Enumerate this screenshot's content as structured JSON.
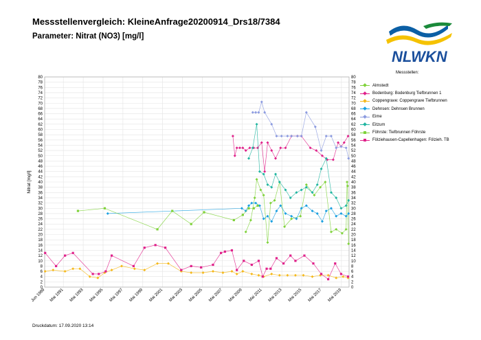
{
  "header": {
    "title": "Messstellenvergleich: KleineAnfrage20200914_Drs18/7384",
    "subtitle": "Parameter: Nitrat (NO3) [mg/l]"
  },
  "logo": {
    "text": "NLWKN",
    "colors": {
      "blue": "#0b5fa5",
      "yellow": "#f5c200",
      "green": "#1a8a3a"
    }
  },
  "footer": {
    "print_date": "Druckdatum: 17.09.2020 13:14"
  },
  "chart_data": {
    "type": "line",
    "xlabel": "",
    "ylabel": "Nitrat  [mg/l]",
    "ylim": [
      0,
      80
    ],
    "y_ticks": [
      0,
      2,
      4,
      6,
      8,
      10,
      12,
      14,
      16,
      18,
      20,
      22,
      24,
      26,
      28,
      30,
      32,
      34,
      36,
      38,
      40,
      42,
      44,
      46,
      48,
      50,
      52,
      54,
      56,
      58,
      60,
      62,
      64,
      66,
      68,
      70,
      72,
      74,
      76,
      78,
      80
    ],
    "xlim": [
      1989.45,
      2020.1
    ],
    "x_ticks": [
      {
        "t": 1989.45,
        "label": "Jun 1989"
      },
      {
        "t": 1991.33,
        "label": "Mai 1991"
      },
      {
        "t": 1993.33,
        "label": "Mai 1993"
      },
      {
        "t": 1995.33,
        "label": "Mai 1995"
      },
      {
        "t": 1997.33,
        "label": "Mai 1997"
      },
      {
        "t": 1999.33,
        "label": "Mai 1999"
      },
      {
        "t": 2001.33,
        "label": "Mai 2001"
      },
      {
        "t": 2003.33,
        "label": "Mai 2003"
      },
      {
        "t": 2005.33,
        "label": "Mai 2005"
      },
      {
        "t": 2007.33,
        "label": "Mai 2007"
      },
      {
        "t": 2009.33,
        "label": "Mai 2009"
      },
      {
        "t": 2011.33,
        "label": "Mai 2011"
      },
      {
        "t": 2013.33,
        "label": "Mai 2013"
      },
      {
        "t": 2015.33,
        "label": "Mai 2015"
      },
      {
        "t": 2017.33,
        "label": "Mai 2017"
      },
      {
        "t": 2019.33,
        "label": "Mai 2019"
      }
    ],
    "grid": true,
    "legend_title": "Messstellen:",
    "legend_position": "right",
    "series": [
      {
        "name": "Almstedt",
        "color": "#7fd23a",
        "marker": "diamond",
        "points": [
          [
            2009.7,
            21
          ],
          [
            2010.2,
            25.5
          ],
          [
            2010.6,
            34
          ],
          [
            2010.8,
            41
          ],
          [
            2011.2,
            37
          ],
          [
            2011.5,
            35
          ],
          [
            2011.9,
            17
          ],
          [
            2012.2,
            32
          ],
          [
            2012.6,
            33
          ],
          [
            2013.1,
            40
          ],
          [
            2013.6,
            23
          ],
          [
            2014.3,
            26
          ],
          [
            2015.2,
            27
          ],
          [
            2015.8,
            39
          ],
          [
            2016.6,
            35
          ],
          [
            2017.2,
            38
          ],
          [
            2017.7,
            40
          ],
          [
            2018.3,
            21
          ],
          [
            2018.8,
            22
          ],
          [
            2019.4,
            20.5
          ],
          [
            2019.8,
            22
          ],
          [
            2020.05,
            16.5
          ],
          [
            2019.9,
            40
          ],
          [
            2019.95,
            38.5
          ]
        ]
      },
      {
        "name": "Bodenburg: Bodenburg Tiefbrunnen 1",
        "color": "#e0218a",
        "marker": "diamond",
        "points": [
          [
            2008.4,
            57.5
          ],
          [
            2008.6,
            50
          ],
          [
            2008.8,
            53
          ],
          [
            2009.1,
            53
          ],
          [
            2009.4,
            53
          ],
          [
            2009.7,
            52
          ],
          [
            2010.1,
            53
          ],
          [
            2010.5,
            53
          ],
          [
            2010.9,
            53
          ],
          [
            2011.3,
            55
          ],
          [
            2011.6,
            44
          ],
          [
            2011.9,
            55
          ],
          [
            2012.3,
            52
          ],
          [
            2012.7,
            49
          ],
          [
            2013.2,
            53
          ],
          [
            2013.7,
            53
          ],
          [
            2014.3,
            57.5
          ],
          [
            2014.9,
            57.5
          ],
          [
            2015.3,
            57.5
          ],
          [
            2016.2,
            53
          ],
          [
            2016.8,
            52
          ],
          [
            2017.4,
            50
          ],
          [
            2017.9,
            48.5
          ],
          [
            2018.5,
            48.5
          ],
          [
            2019.0,
            55
          ],
          [
            2019.3,
            53.5
          ],
          [
            2019.6,
            55
          ],
          [
            2020.0,
            57.5
          ]
        ]
      },
      {
        "name": "Coppengrave: Coppengrave Tiefbrunnen",
        "color": "#f5b81a",
        "marker": "diamond",
        "points": [
          [
            1989.5,
            6
          ],
          [
            1990.3,
            6.5
          ],
          [
            1991.5,
            6
          ],
          [
            1992.3,
            7
          ],
          [
            1993.0,
            7
          ],
          [
            1994.0,
            4
          ],
          [
            1994.8,
            3.5
          ],
          [
            1995.5,
            5.5
          ],
          [
            1996.2,
            6.5
          ],
          [
            1997.2,
            8
          ],
          [
            1998.5,
            7
          ],
          [
            1999.5,
            6.5
          ],
          [
            2000.8,
            9
          ],
          [
            2001.9,
            9
          ],
          [
            2003.2,
            6
          ],
          [
            2004.2,
            5.5
          ],
          [
            2005.4,
            5.5
          ],
          [
            2006.4,
            6
          ],
          [
            2007.4,
            5.5
          ],
          [
            2008.3,
            6
          ],
          [
            2008.8,
            5
          ],
          [
            2009.4,
            6
          ],
          [
            2010.3,
            5
          ],
          [
            2011.0,
            4.5
          ],
          [
            2011.5,
            4
          ],
          [
            2012.3,
            5
          ],
          [
            2013.1,
            4.5
          ],
          [
            2013.9,
            4.5
          ],
          [
            2014.7,
            4.5
          ],
          [
            2015.5,
            4.5
          ],
          [
            2016.4,
            4
          ],
          [
            2017.2,
            4.5
          ],
          [
            2018.0,
            4.5
          ],
          [
            2018.8,
            3.5
          ],
          [
            2019.5,
            4
          ],
          [
            2020.0,
            3.5
          ]
        ]
      },
      {
        "name": "Dehnsen: Dehnsen Brunnen",
        "color": "#1aa0e0",
        "marker": "diamond",
        "points": [
          [
            1995.8,
            28
          ],
          [
            2009.3,
            30
          ],
          [
            2009.7,
            29
          ],
          [
            2010.0,
            31
          ],
          [
            2010.3,
            32
          ],
          [
            2010.7,
            32
          ],
          [
            2011.1,
            31
          ],
          [
            2011.5,
            26
          ],
          [
            2011.9,
            27
          ],
          [
            2012.3,
            25
          ],
          [
            2012.8,
            29
          ],
          [
            2013.2,
            31
          ],
          [
            2013.7,
            28
          ],
          [
            2014.3,
            27
          ],
          [
            2014.8,
            26
          ],
          [
            2015.3,
            30
          ],
          [
            2015.8,
            31
          ],
          [
            2016.4,
            29
          ],
          [
            2016.9,
            28
          ],
          [
            2017.4,
            25
          ],
          [
            2017.8,
            29
          ],
          [
            2018.3,
            30
          ],
          [
            2018.8,
            27
          ],
          [
            2019.3,
            28
          ],
          [
            2019.8,
            27
          ],
          [
            2020.05,
            28
          ]
        ]
      },
      {
        "name": "Eime",
        "color": "#8c9be0",
        "marker": "diamond",
        "points": [
          [
            2010.4,
            66.5
          ],
          [
            2010.7,
            66.5
          ],
          [
            2011.0,
            66.5
          ],
          [
            2011.3,
            70.5
          ],
          [
            2011.6,
            66.5
          ],
          [
            2012.3,
            62
          ],
          [
            2012.8,
            57.5
          ],
          [
            2013.3,
            57.5
          ],
          [
            2013.9,
            57.5
          ],
          [
            2014.3,
            57.5
          ],
          [
            2014.9,
            57.5
          ],
          [
            2015.3,
            57.5
          ],
          [
            2015.8,
            66.5
          ],
          [
            2016.7,
            61
          ],
          [
            2017.3,
            52
          ],
          [
            2017.8,
            57.5
          ],
          [
            2018.3,
            57.5
          ],
          [
            2018.8,
            53
          ],
          [
            2019.3,
            53.5
          ],
          [
            2019.8,
            53
          ],
          [
            2020.05,
            49
          ]
        ]
      },
      {
        "name": "Eitzum",
        "color": "#20b5a0",
        "marker": "diamond",
        "points": [
          [
            2010.0,
            49
          ],
          [
            2010.4,
            53
          ],
          [
            2010.8,
            62
          ],
          [
            2011.1,
            44
          ],
          [
            2011.5,
            43
          ],
          [
            2011.9,
            39
          ],
          [
            2012.3,
            38
          ],
          [
            2012.7,
            43
          ],
          [
            2013.1,
            40
          ],
          [
            2013.7,
            37
          ],
          [
            2014.2,
            34
          ],
          [
            2014.8,
            36
          ],
          [
            2015.3,
            37
          ],
          [
            2015.8,
            38
          ],
          [
            2016.4,
            36
          ],
          [
            2016.9,
            39
          ],
          [
            2017.3,
            45
          ],
          [
            2017.8,
            49
          ],
          [
            2018.3,
            36
          ],
          [
            2018.8,
            34
          ],
          [
            2019.3,
            30
          ],
          [
            2019.8,
            31
          ],
          [
            2020.05,
            33
          ]
        ]
      },
      {
        "name": "Föhrste: Tiefbrunnen Föhrste",
        "color": "#7fd23a",
        "marker": "square",
        "points": [
          [
            1992.8,
            29
          ],
          [
            1995.5,
            30
          ],
          [
            2000.8,
            22
          ],
          [
            2002.3,
            29
          ],
          [
            2004.2,
            24
          ],
          [
            2005.5,
            28.5
          ],
          [
            2008.5,
            25.5
          ],
          [
            2009.4,
            27.5
          ],
          [
            2010.0,
            30
          ],
          [
            2010.5,
            30
          ],
          [
            2010.9,
            31
          ]
        ]
      },
      {
        "name": "Fölziehausen-Capellenhagen: Fölzieh. TB",
        "color": "#e0218a",
        "marker": "square",
        "points": [
          [
            1989.5,
            13
          ],
          [
            1990.6,
            8
          ],
          [
            1991.5,
            12
          ],
          [
            1992.3,
            13
          ],
          [
            1994.3,
            5
          ],
          [
            1994.9,
            5
          ],
          [
            1995.6,
            6
          ],
          [
            1996.2,
            12
          ],
          [
            1998.4,
            8
          ],
          [
            1999.5,
            15
          ],
          [
            2000.6,
            16
          ],
          [
            2001.6,
            15
          ],
          [
            2003.2,
            6.5
          ],
          [
            2004.2,
            8
          ],
          [
            2005.2,
            7.5
          ],
          [
            2006.4,
            8.5
          ],
          [
            2007.2,
            13
          ],
          [
            2007.6,
            13.5
          ],
          [
            2008.3,
            14
          ],
          [
            2008.8,
            6.5
          ],
          [
            2009.5,
            10
          ],
          [
            2010.3,
            8.5
          ],
          [
            2011.0,
            10
          ],
          [
            2011.4,
            4
          ],
          [
            2011.8,
            7
          ],
          [
            2012.2,
            7
          ],
          [
            2012.8,
            11
          ],
          [
            2013.5,
            9
          ],
          [
            2014.2,
            12
          ],
          [
            2014.7,
            10
          ],
          [
            2015.6,
            12
          ],
          [
            2016.5,
            9
          ],
          [
            2017.3,
            5
          ],
          [
            2018.0,
            3
          ],
          [
            2018.7,
            9
          ],
          [
            2019.3,
            5
          ],
          [
            2020.0,
            4
          ]
        ]
      }
    ]
  }
}
